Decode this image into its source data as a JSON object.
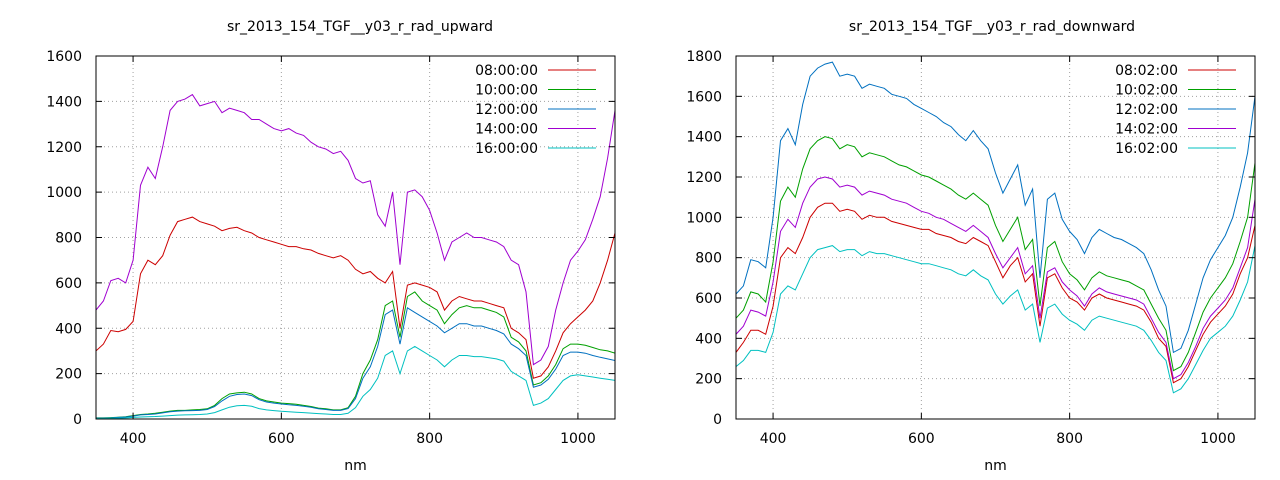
{
  "chart_data": [
    {
      "type": "line",
      "title": "sr_2013_154_TGF__y03_r_rad_upward",
      "xlabel": "nm",
      "ylabel": "",
      "xlim": [
        350,
        1050
      ],
      "ylim": [
        0,
        1600
      ],
      "xticks": [
        400,
        600,
        800,
        1000
      ],
      "yticks": [
        0,
        200,
        400,
        600,
        800,
        1000,
        1200,
        1400,
        1600
      ],
      "grid": true,
      "legend_position": "top-right",
      "x": [
        350,
        360,
        370,
        380,
        390,
        400,
        410,
        420,
        430,
        440,
        450,
        460,
        470,
        480,
        490,
        500,
        510,
        520,
        530,
        540,
        550,
        560,
        570,
        580,
        590,
        600,
        610,
        620,
        630,
        640,
        650,
        660,
        670,
        680,
        690,
        700,
        710,
        720,
        730,
        740,
        750,
        760,
        770,
        780,
        790,
        800,
        810,
        820,
        830,
        840,
        850,
        860,
        870,
        880,
        890,
        900,
        910,
        920,
        930,
        940,
        950,
        960,
        970,
        980,
        990,
        1000,
        1010,
        1020,
        1030,
        1040,
        1050
      ],
      "series": [
        {
          "name": "08:00:00",
          "color": "#cc0000",
          "values": [
            300,
            330,
            390,
            385,
            395,
            430,
            640,
            700,
            680,
            720,
            810,
            870,
            880,
            890,
            870,
            860,
            850,
            830,
            840,
            845,
            830,
            820,
            800,
            790,
            780,
            770,
            760,
            760,
            750,
            745,
            730,
            720,
            710,
            720,
            700,
            660,
            640,
            650,
            620,
            600,
            650,
            400,
            590,
            600,
            590,
            580,
            560,
            480,
            520,
            540,
            530,
            520,
            520,
            510,
            500,
            490,
            400,
            380,
            350,
            180,
            190,
            230,
            300,
            380,
            420,
            450,
            480,
            520,
            600,
            700,
            820
          ]
        },
        {
          "name": "10:00:00",
          "color": "#00a000",
          "values": [
            5,
            5,
            6,
            8,
            10,
            15,
            20,
            22,
            25,
            30,
            35,
            38,
            38,
            40,
            42,
            45,
            60,
            90,
            110,
            115,
            118,
            110,
            90,
            80,
            75,
            70,
            68,
            65,
            60,
            55,
            48,
            45,
            40,
            40,
            50,
            100,
            200,
            260,
            350,
            500,
            520,
            360,
            540,
            560,
            520,
            500,
            480,
            420,
            460,
            490,
            500,
            490,
            490,
            480,
            470,
            450,
            360,
            340,
            300,
            150,
            160,
            190,
            240,
            310,
            330,
            330,
            325,
            315,
            305,
            300,
            290
          ]
        },
        {
          "name": "12:00:00",
          "color": "#0070c0",
          "values": [
            4,
            4,
            5,
            7,
            9,
            13,
            18,
            20,
            22,
            27,
            32,
            35,
            36,
            37,
            38,
            42,
            55,
            80,
            100,
            108,
            110,
            103,
            85,
            75,
            70,
            66,
            63,
            60,
            56,
            52,
            45,
            42,
            38,
            38,
            46,
            90,
            180,
            230,
            320,
            460,
            480,
            330,
            490,
            470,
            450,
            430,
            410,
            380,
            400,
            420,
            420,
            410,
            410,
            400,
            390,
            375,
            330,
            310,
            280,
            140,
            150,
            175,
            220,
            280,
            295,
            295,
            290,
            280,
            272,
            265,
            258
          ]
        },
        {
          "name": "14:00:00",
          "color": "#a000d0",
          "values": [
            480,
            520,
            610,
            620,
            600,
            700,
            1030,
            1110,
            1060,
            1200,
            1360,
            1400,
            1410,
            1430,
            1380,
            1390,
            1400,
            1350,
            1370,
            1360,
            1350,
            1320,
            1320,
            1300,
            1280,
            1270,
            1280,
            1260,
            1250,
            1220,
            1200,
            1190,
            1170,
            1180,
            1140,
            1060,
            1040,
            1050,
            900,
            850,
            1000,
            680,
            1000,
            1010,
            980,
            920,
            820,
            700,
            780,
            800,
            820,
            800,
            800,
            790,
            780,
            760,
            700,
            680,
            560,
            240,
            260,
            320,
            480,
            600,
            700,
            740,
            790,
            880,
            980,
            1150,
            1360
          ]
        },
        {
          "name": "16:00:00",
          "color": "#00c0c0",
          "values": [
            2,
            2,
            3,
            4,
            5,
            7,
            9,
            10,
            11,
            13,
            15,
            17,
            18,
            19,
            20,
            22,
            28,
            40,
            52,
            58,
            60,
            56,
            46,
            40,
            37,
            34,
            32,
            30,
            28,
            26,
            24,
            22,
            20,
            20,
            25,
            50,
            100,
            130,
            180,
            280,
            300,
            200,
            300,
            320,
            300,
            280,
            260,
            230,
            260,
            280,
            280,
            275,
            275,
            270,
            265,
            255,
            210,
            190,
            170,
            60,
            70,
            90,
            130,
            170,
            190,
            195,
            190,
            185,
            180,
            175,
            170
          ]
        }
      ]
    },
    {
      "type": "line",
      "title": "sr_2013_154_TGF__y03_r_rad_downward",
      "xlabel": "nm",
      "ylabel": "",
      "xlim": [
        350,
        1050
      ],
      "ylim": [
        0,
        1800
      ],
      "xticks": [
        400,
        600,
        800,
        1000
      ],
      "yticks": [
        0,
        200,
        400,
        600,
        800,
        1000,
        1200,
        1400,
        1600,
        1800
      ],
      "grid": true,
      "legend_position": "top-right",
      "x": [
        350,
        360,
        370,
        380,
        390,
        400,
        410,
        420,
        430,
        440,
        450,
        460,
        470,
        480,
        490,
        500,
        510,
        520,
        530,
        540,
        550,
        560,
        570,
        580,
        590,
        600,
        610,
        620,
        630,
        640,
        650,
        660,
        670,
        680,
        690,
        700,
        710,
        720,
        730,
        740,
        750,
        760,
        770,
        780,
        790,
        800,
        810,
        820,
        830,
        840,
        850,
        860,
        870,
        880,
        890,
        900,
        910,
        920,
        930,
        940,
        950,
        960,
        970,
        980,
        990,
        1000,
        1010,
        1020,
        1030,
        1040,
        1050
      ],
      "series": [
        {
          "name": "08:02:00",
          "color": "#cc0000",
          "values": [
            330,
            380,
            440,
            440,
            420,
            560,
            800,
            850,
            820,
            900,
            1000,
            1050,
            1070,
            1070,
            1030,
            1040,
            1030,
            990,
            1010,
            1000,
            1000,
            980,
            970,
            960,
            950,
            940,
            940,
            920,
            910,
            900,
            880,
            870,
            900,
            880,
            860,
            780,
            700,
            760,
            800,
            680,
            720,
            460,
            700,
            720,
            650,
            600,
            580,
            540,
            600,
            620,
            600,
            590,
            580,
            570,
            560,
            540,
            480,
            400,
            360,
            180,
            200,
            260,
            340,
            420,
            480,
            520,
            560,
            620,
            720,
            800,
            960
          ]
        },
        {
          "name": "10:02:00",
          "color": "#00a000",
          "values": [
            500,
            540,
            630,
            620,
            580,
            780,
            1080,
            1150,
            1100,
            1240,
            1340,
            1380,
            1400,
            1390,
            1340,
            1360,
            1350,
            1300,
            1320,
            1310,
            1300,
            1280,
            1260,
            1250,
            1230,
            1210,
            1200,
            1180,
            1160,
            1140,
            1110,
            1090,
            1120,
            1090,
            1060,
            960,
            880,
            940,
            1000,
            840,
            890,
            560,
            850,
            880,
            780,
            720,
            690,
            640,
            700,
            730,
            710,
            700,
            690,
            680,
            660,
            640,
            570,
            500,
            440,
            240,
            260,
            330,
            430,
            530,
            600,
            650,
            700,
            770,
            880,
            1000,
            1270
          ]
        },
        {
          "name": "12:02:00",
          "color": "#0070c0",
          "values": [
            620,
            660,
            790,
            780,
            750,
            1000,
            1380,
            1440,
            1360,
            1560,
            1700,
            1740,
            1760,
            1770,
            1700,
            1710,
            1700,
            1640,
            1660,
            1650,
            1640,
            1610,
            1600,
            1590,
            1560,
            1540,
            1520,
            1500,
            1470,
            1450,
            1410,
            1380,
            1430,
            1380,
            1340,
            1220,
            1120,
            1190,
            1260,
            1060,
            1140,
            700,
            1090,
            1120,
            990,
            930,
            890,
            820,
            900,
            940,
            920,
            900,
            890,
            870,
            850,
            820,
            740,
            640,
            560,
            330,
            350,
            440,
            570,
            700,
            790,
            850,
            910,
            1000,
            1150,
            1320,
            1600
          ]
        },
        {
          "name": "14:02:00",
          "color": "#a000d0",
          "values": [
            420,
            460,
            540,
            530,
            510,
            680,
            930,
            990,
            950,
            1070,
            1150,
            1190,
            1200,
            1190,
            1150,
            1160,
            1150,
            1110,
            1130,
            1120,
            1110,
            1090,
            1080,
            1070,
            1050,
            1030,
            1020,
            1000,
            990,
            970,
            950,
            930,
            960,
            930,
            900,
            820,
            750,
            800,
            850,
            720,
            760,
            500,
            730,
            750,
            680,
            640,
            610,
            560,
            620,
            650,
            630,
            620,
            610,
            600,
            590,
            570,
            500,
            430,
            380,
            200,
            220,
            280,
            360,
            450,
            510,
            550,
            590,
            650,
            750,
            850,
            1090
          ]
        },
        {
          "name": "16:02:00",
          "color": "#00c0c0",
          "values": [
            260,
            290,
            340,
            340,
            330,
            430,
            620,
            660,
            640,
            720,
            800,
            840,
            850,
            860,
            830,
            840,
            840,
            810,
            830,
            820,
            820,
            810,
            800,
            790,
            780,
            770,
            770,
            760,
            750,
            740,
            720,
            710,
            740,
            710,
            690,
            620,
            570,
            610,
            640,
            540,
            570,
            380,
            550,
            570,
            520,
            490,
            470,
            440,
            490,
            510,
            500,
            490,
            480,
            470,
            460,
            440,
            390,
            330,
            290,
            130,
            150,
            200,
            270,
            340,
            400,
            430,
            460,
            510,
            590,
            680,
            860
          ]
        }
      ]
    }
  ]
}
